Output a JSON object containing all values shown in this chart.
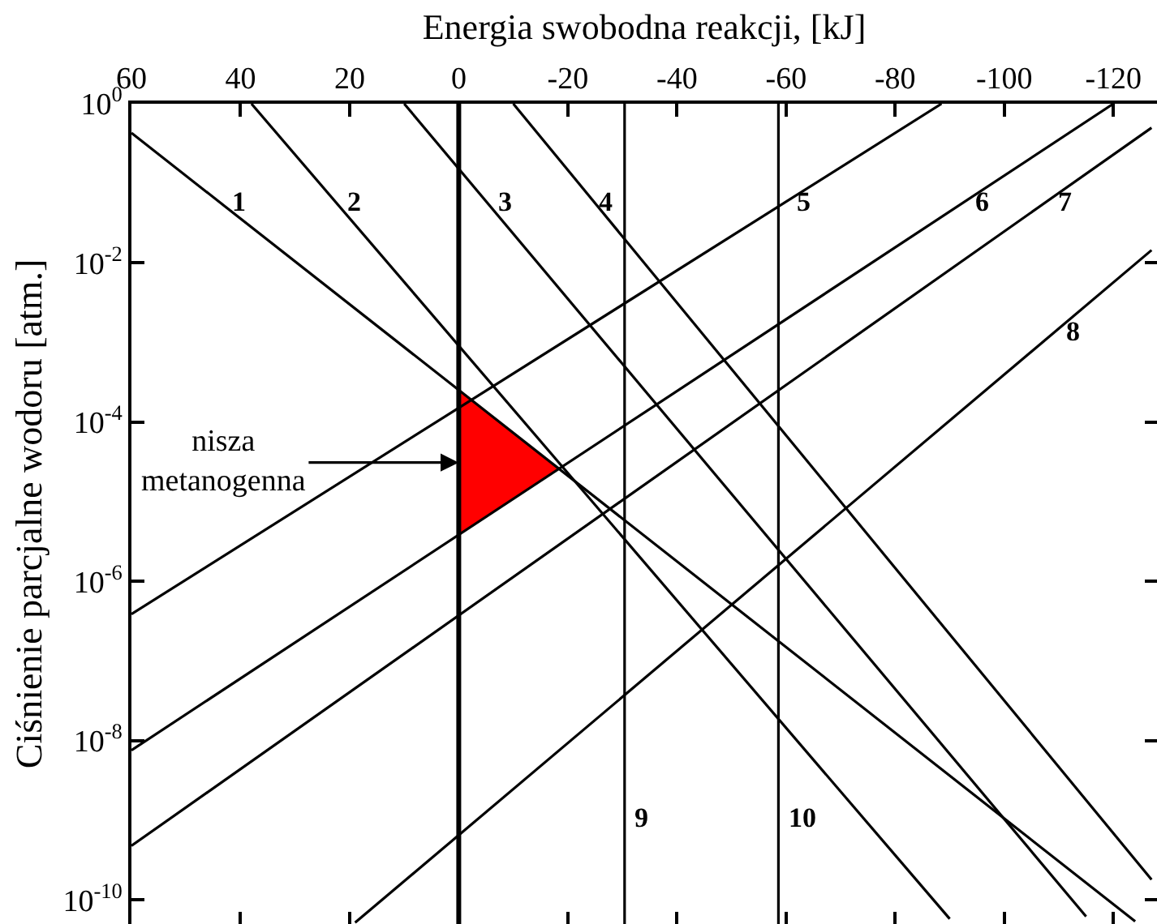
{
  "chart_data": {
    "type": "line",
    "xlabel": "Energia swobodna reakcji, [kJ]",
    "ylabel": "Ciśnienie parcjalne wodoru [atm.]",
    "xlim": [
      60,
      -128
    ],
    "xticks": [
      60,
      40,
      20,
      0,
      -20,
      -40,
      -60,
      -80,
      -100,
      -120
    ],
    "ylim": [
      5e-11,
      1
    ],
    "yticks": [
      {
        "value": 1,
        "label": "10$^{0}$"
      },
      {
        "value": 0.01,
        "label": "10$^{-2}$"
      },
      {
        "value": 0.0001,
        "label": "10$^{-4}$"
      },
      {
        "value": 1e-06,
        "label": "10$^{-6}$"
      },
      {
        "value": 1e-08,
        "label": "10$^{-8}$"
      },
      {
        "value": 1e-10,
        "label": "10$^{-10}$"
      }
    ],
    "log": true,
    "grid": false,
    "legend": false,
    "marker": "none",
    "line_style": "solid",
    "ref_lines": [
      {
        "axis": "x",
        "value": 0,
        "color": "#000000"
      }
    ],
    "annotations": [
      "nisza\nmetanogenna"
    ],
    "series": [
      {
        "type": "area",
        "color": "#ff0000",
        "x": [
          0,
          0,
          -18.4,
          0
        ],
        "values": [
          0.00025,
          3.9e-06,
          2.6e-05,
          0.00025
        ]
      },
      {
        "name": "1",
        "color": "#000000",
        "x": [
          60,
          -124
        ],
        "values": [
          0.43,
          5.4e-11
        ]
      },
      {
        "name": "2",
        "color": "#000000",
        "x": [
          38,
          -90
        ],
        "values": [
          1,
          5.8e-11
        ]
      },
      {
        "name": "3",
        "color": "#000000",
        "x": [
          10,
          -115
        ],
        "values": [
          1,
          6.2e-11
        ]
      },
      {
        "name": "4",
        "color": "#000000",
        "x": [
          -10,
          -127
        ],
        "values": [
          1,
          1.8e-10
        ]
      },
      {
        "name": "5",
        "color": "#000000",
        "x": [
          60,
          -88.5
        ],
        "values": [
          3.9e-07,
          1
        ]
      },
      {
        "name": "6",
        "color": "#000000",
        "x": [
          60,
          -120
        ],
        "values": [
          7.6e-09,
          1
        ]
      },
      {
        "name": "7",
        "color": "#000000",
        "x": [
          60,
          -127
        ],
        "values": [
          4.8e-10,
          0.5
        ]
      },
      {
        "name": "8",
        "color": "#000000",
        "x": [
          19,
          -127
        ],
        "values": [
          5.2e-11,
          0.0145
        ]
      },
      {
        "name": "9",
        "color": "#000000",
        "x": [
          -30.4,
          -30.4
        ],
        "values": [
          5e-11,
          1
        ]
      },
      {
        "name": "10",
        "color": "#000000",
        "x": [
          -58.6,
          -58.6
        ],
        "values": [
          5e-11,
          1
        ]
      }
    ]
  }
}
